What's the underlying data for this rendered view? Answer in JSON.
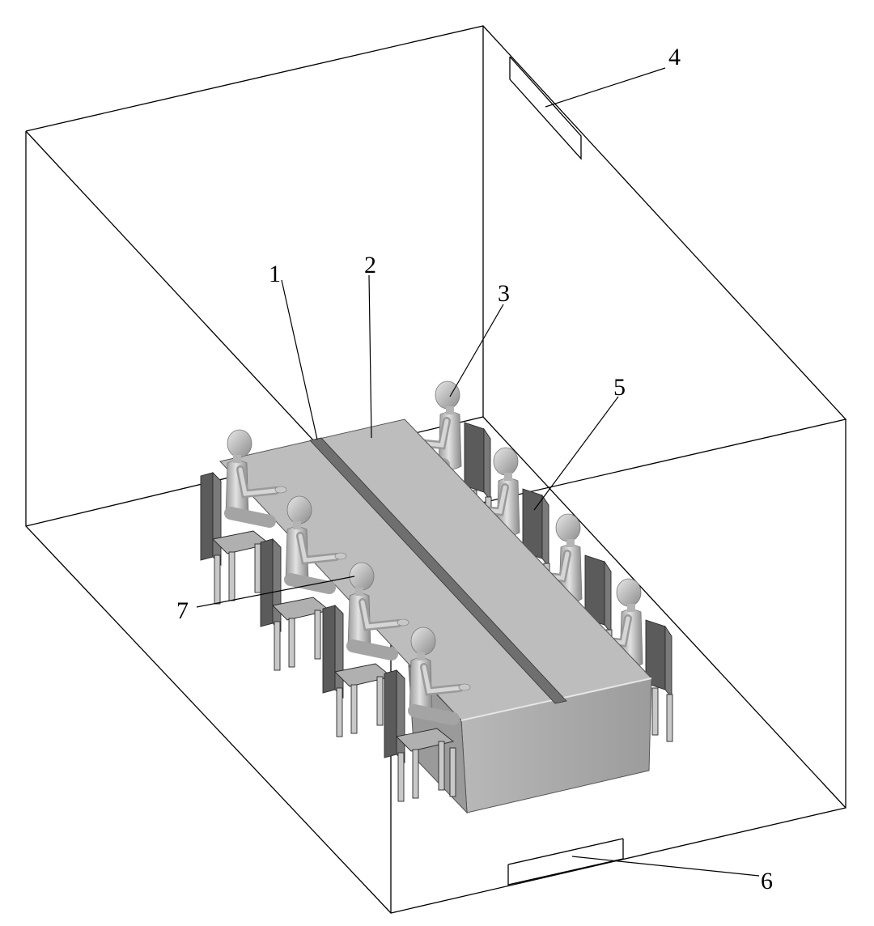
{
  "colors": {
    "room_edge": "#000000",
    "table_top": "#bdbdbd",
    "table_front": "#a9a9a9",
    "divider": "#7d7d7d",
    "figure": "#c4c4c4",
    "figure_dark": "#8e8e8e",
    "chair": "#7a7a7a",
    "chair_back": "#5b5b5b"
  },
  "callouts": [
    {
      "id": "1",
      "label": "1"
    },
    {
      "id": "2",
      "label": "2"
    },
    {
      "id": "3",
      "label": "3"
    },
    {
      "id": "4",
      "label": "4"
    },
    {
      "id": "5",
      "label": "5"
    },
    {
      "id": "6",
      "label": "6"
    },
    {
      "id": "7",
      "label": "7"
    }
  ],
  "components": {
    "room": "room-enclosure",
    "table": "conference-table",
    "divider": "table-partition",
    "occupants": 8,
    "ceiling_vent": "ceiling-vent",
    "floor_vent": "floor-vent"
  }
}
